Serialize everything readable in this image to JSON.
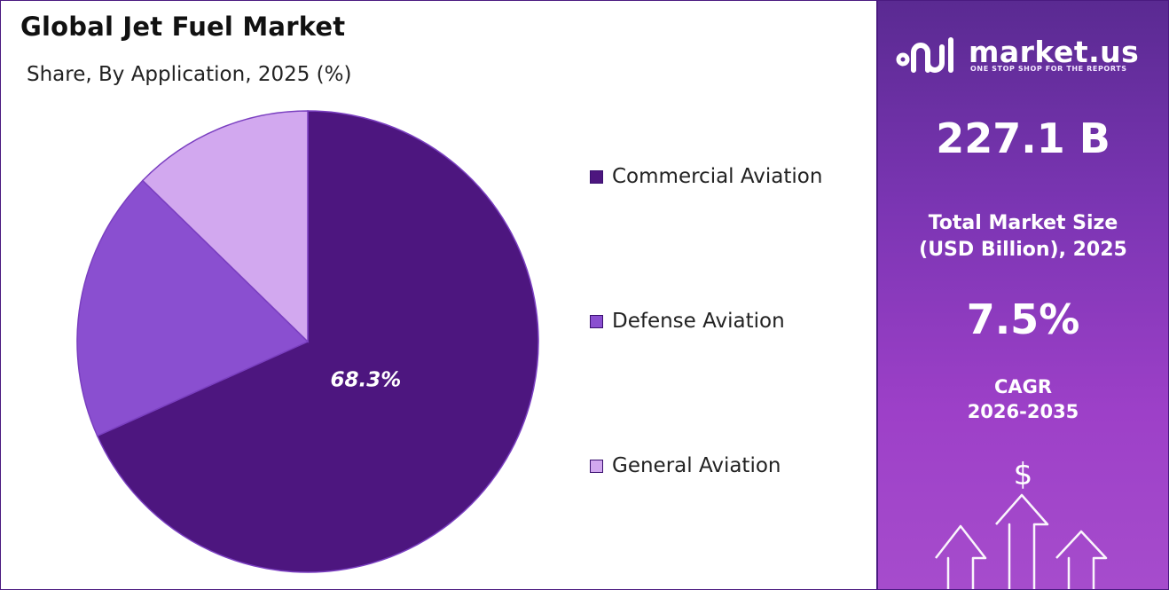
{
  "header": {
    "title": "Global Jet Fuel Market",
    "subtitle": "Share, By Application, 2025 (%)"
  },
  "chart_data": {
    "type": "pie",
    "title": "Global Jet Fuel Market",
    "subtitle": "Share, By Application, 2025 (%)",
    "slices": [
      {
        "label": "Commercial Aviation",
        "value": 68.3,
        "color": "#4d167f",
        "data_label": "68.3%"
      },
      {
        "label": "Defense Aviation",
        "value": 19.0,
        "color": "#8a4fd0",
        "data_label": ""
      },
      {
        "label": "General Aviation",
        "value": 12.7,
        "color": "#d2a8ef",
        "data_label": ""
      }
    ],
    "legend_position": "right",
    "start": "12 o'clock, clockwise"
  },
  "sidebar": {
    "brand_name": "market.us",
    "brand_tagline": "ONE STOP SHOP FOR THE REPORTS",
    "market_size_value": "227.1 B",
    "market_size_label_line1": "Total Market Size",
    "market_size_label_line2": "(USD Billion), 2025",
    "cagr_value": "7.5%",
    "cagr_label_line1": "CAGR",
    "cagr_label_line2": "2026-2035",
    "dollar_symbol": "$",
    "background_colors": [
      "#5a2a92",
      "#a64ccc"
    ]
  }
}
